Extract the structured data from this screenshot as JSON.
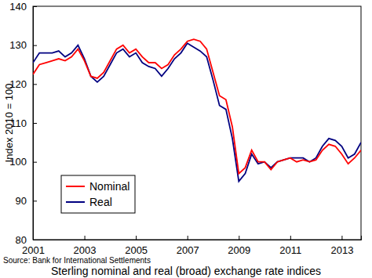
{
  "chart_data": {
    "type": "line",
    "title": "Sterling nominal and real (broad) exchange rate indices",
    "source": "Source: Bank for International Settlements",
    "y_label": "Index 2010 = 100",
    "x": [
      2001.0,
      2001.25,
      2001.5,
      2001.75,
      2002.0,
      2002.25,
      2002.5,
      2002.75,
      2003.0,
      2003.25,
      2003.5,
      2003.75,
      2004.0,
      2004.25,
      2004.5,
      2004.75,
      2005.0,
      2005.25,
      2005.5,
      2005.75,
      2006.0,
      2006.25,
      2006.5,
      2006.75,
      2007.0,
      2007.25,
      2007.5,
      2007.75,
      2008.0,
      2008.25,
      2008.5,
      2008.75,
      2009.0,
      2009.25,
      2009.5,
      2009.75,
      2010.0,
      2010.25,
      2010.5,
      2010.75,
      2011.0,
      2011.25,
      2011.5,
      2011.75,
      2012.0,
      2012.25,
      2012.5,
      2012.75,
      2013.0,
      2013.25,
      2013.5,
      2013.75
    ],
    "series": [
      {
        "name": "Nominal",
        "color": "#ff0000",
        "values": [
          122.5,
          125,
          125.5,
          126,
          126.5,
          126,
          127,
          129,
          126,
          122,
          121.5,
          123,
          126,
          129,
          130,
          128,
          129,
          127,
          125.5,
          125.5,
          124,
          125,
          127.5,
          129,
          131,
          131.5,
          131,
          129,
          123,
          117,
          116,
          109,
          97,
          98.5,
          103,
          100,
          100,
          98,
          100,
          100.5,
          101,
          100,
          100.5,
          100,
          100.5,
          103,
          104.5,
          104,
          102,
          99.5,
          101,
          103
        ]
      },
      {
        "name": "Real",
        "color": "#000080",
        "values": [
          125.5,
          128,
          128,
          128,
          128.5,
          127,
          128,
          130,
          126.5,
          122,
          120.5,
          122,
          125,
          128,
          129,
          127,
          128,
          125.5,
          124.5,
          124,
          122,
          124,
          126.5,
          128,
          130.5,
          129.5,
          128.5,
          127,
          121,
          114.5,
          113.5,
          106,
          95,
          97,
          102,
          99.5,
          100,
          98.5,
          100,
          100.5,
          101,
          101,
          101,
          100,
          101,
          104,
          106,
          105.5,
          104,
          101,
          102,
          105
        ]
      }
    ],
    "xlim": [
      2001,
      2013.75
    ],
    "xticks": [
      2001,
      2003,
      2005,
      2007,
      2009,
      2011,
      2013
    ],
    "ylim": [
      80,
      140
    ],
    "yticks": [
      80,
      90,
      100,
      110,
      120,
      130,
      140
    ],
    "grid": false,
    "legend": "bottom-left"
  }
}
